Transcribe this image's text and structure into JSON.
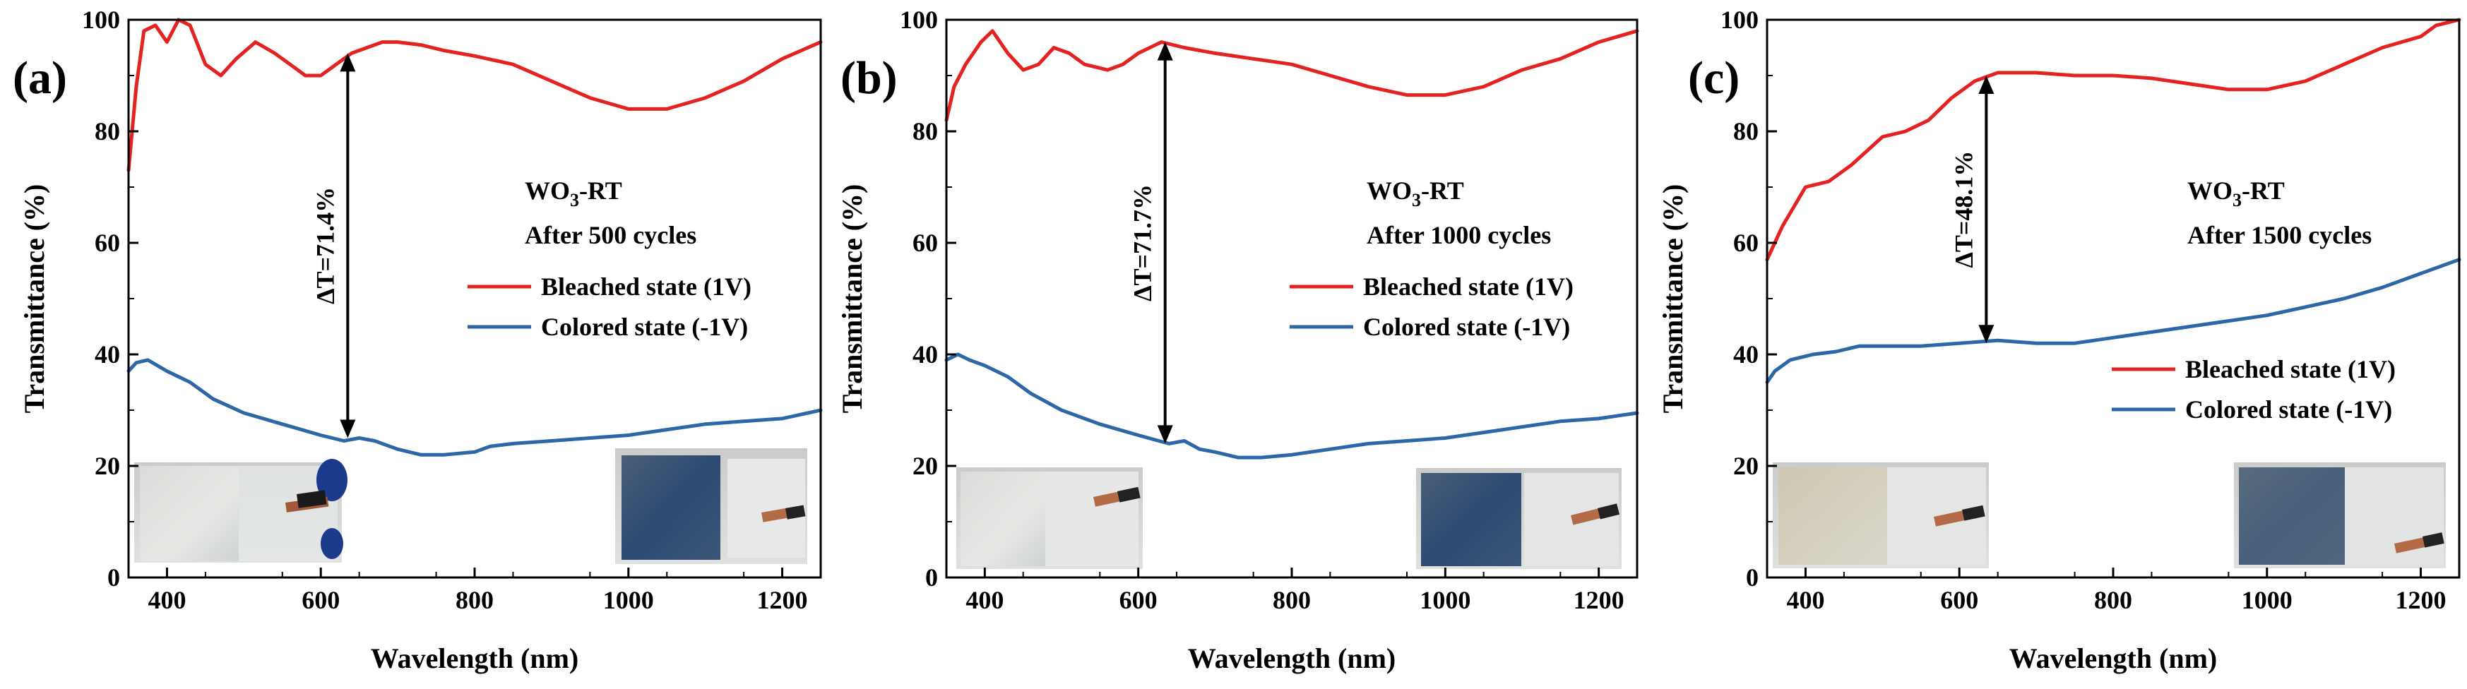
{
  "colors": {
    "bleached": "#e32222",
    "colored": "#2e67a6",
    "arrow": "#000000",
    "axis": "#000000"
  },
  "chart_data": [
    {
      "type": "line",
      "panel_label": "(a)",
      "xlabel": "Wavelength (nm)",
      "ylabel": "Transmittance (%)",
      "xlim": [
        350,
        1250
      ],
      "ylim": [
        0,
        100
      ],
      "xticks": [
        400,
        600,
        800,
        1000,
        1200
      ],
      "yticks": [
        0,
        20,
        40,
        60,
        80,
        100
      ],
      "grid": false,
      "legend_position": "middle-right",
      "annotation": {
        "label": "ΔT=71.4%",
        "x": 635,
        "y_top": 94,
        "y_bottom": 25
      },
      "sample_text": {
        "material": "WO",
        "subscript": "3",
        "suffix": "-RT",
        "cycles": "After 500 cycles"
      },
      "series": [
        {
          "name": "Bleached state (1V)",
          "color_key": "bleached",
          "x": [
            350,
            360,
            370,
            385,
            400,
            415,
            430,
            450,
            470,
            490,
            515,
            540,
            560,
            580,
            600,
            620,
            640,
            660,
            680,
            700,
            730,
            760,
            800,
            850,
            900,
            950,
            1000,
            1050,
            1100,
            1150,
            1200,
            1250
          ],
          "y": [
            73,
            88,
            98,
            99,
            96,
            100,
            99,
            92,
            90,
            93,
            96,
            94,
            92,
            90,
            90,
            92,
            94,
            95,
            96,
            96,
            95.5,
            94.5,
            93.5,
            92,
            89,
            86,
            84,
            84,
            86,
            89,
            93,
            96
          ]
        },
        {
          "name": "Colored state (-1V)",
          "color_key": "colored",
          "x": [
            350,
            360,
            375,
            400,
            430,
            460,
            500,
            550,
            600,
            630,
            650,
            670,
            700,
            730,
            760,
            800,
            820,
            850,
            900,
            950,
            1000,
            1050,
            1100,
            1150,
            1200,
            1250
          ],
          "y": [
            37,
            38.5,
            39,
            37,
            35,
            32,
            29.5,
            27.5,
            25.5,
            24.5,
            25,
            24.5,
            23,
            22,
            22,
            22.5,
            23.5,
            24,
            24.5,
            25,
            25.5,
            26.5,
            27.5,
            28,
            28.5,
            30
          ]
        }
      ]
    },
    {
      "type": "line",
      "panel_label": "(b)",
      "xlabel": "Wavelength (nm)",
      "ylabel": "Transmittance (%)",
      "xlim": [
        350,
        1250
      ],
      "ylim": [
        0,
        100
      ],
      "xticks": [
        400,
        600,
        800,
        1000,
        1200
      ],
      "yticks": [
        0,
        20,
        40,
        60,
        80,
        100
      ],
      "grid": false,
      "legend_position": "middle-right",
      "annotation": {
        "label": "ΔT=71.7%",
        "x": 635,
        "y_top": 96,
        "y_bottom": 24
      },
      "sample_text": {
        "material": "WO",
        "subscript": "3",
        "suffix": "-RT",
        "cycles": "After 1000 cycles"
      },
      "series": [
        {
          "name": "Bleached state (1V)",
          "color_key": "bleached",
          "x": [
            350,
            360,
            375,
            395,
            410,
            430,
            450,
            470,
            490,
            510,
            530,
            560,
            580,
            600,
            630,
            660,
            700,
            750,
            800,
            850,
            900,
            950,
            1000,
            1050,
            1100,
            1150,
            1200,
            1250
          ],
          "y": [
            82,
            88,
            92,
            96,
            98,
            94,
            91,
            92,
            95,
            94,
            92,
            91,
            92,
            94,
            96,
            95,
            94,
            93,
            92,
            90,
            88,
            86.5,
            86.5,
            88,
            91,
            93,
            96,
            98
          ]
        },
        {
          "name": "Colored state (-1V)",
          "color_key": "colored",
          "x": [
            350,
            365,
            380,
            400,
            430,
            460,
            500,
            550,
            600,
            640,
            660,
            680,
            700,
            730,
            760,
            800,
            850,
            900,
            950,
            1000,
            1050,
            1100,
            1150,
            1200,
            1250
          ],
          "y": [
            39,
            40,
            39,
            38,
            36,
            33,
            30,
            27.5,
            25.5,
            24,
            24.5,
            23,
            22.5,
            21.5,
            21.5,
            22,
            23,
            24,
            24.5,
            25,
            26,
            27,
            28,
            28.5,
            29.5
          ]
        }
      ]
    },
    {
      "type": "line",
      "panel_label": "(c)",
      "xlabel": "Wavelength (nm)",
      "ylabel": "Transmittance (%)",
      "xlim": [
        350,
        1250
      ],
      "ylim": [
        0,
        100
      ],
      "xticks": [
        400,
        600,
        800,
        1000,
        1200
      ],
      "yticks": [
        0,
        20,
        40,
        60,
        80,
        100
      ],
      "grid": false,
      "legend_position": "middle-right",
      "annotation": {
        "label": "ΔT=48.1%",
        "x": 635,
        "y_top": 90,
        "y_bottom": 42
      },
      "sample_text": {
        "material": "WO",
        "subscript": "3",
        "suffix": "-RT",
        "cycles": "After 1500 cycles"
      },
      "series": [
        {
          "name": "Bleached state (1V)",
          "color_key": "bleached",
          "x": [
            350,
            370,
            400,
            430,
            460,
            500,
            530,
            560,
            590,
            620,
            650,
            700,
            750,
            800,
            850,
            900,
            950,
            1000,
            1050,
            1100,
            1150,
            1200,
            1220,
            1250
          ],
          "y": [
            57,
            63,
            70,
            71,
            74,
            79,
            80,
            82,
            86,
            89,
            90.5,
            90.5,
            90,
            90,
            89.5,
            88.5,
            87.5,
            87.5,
            89,
            92,
            95,
            97,
            99,
            100
          ]
        },
        {
          "name": "Colored state (-1V)",
          "color_key": "colored",
          "x": [
            350,
            360,
            380,
            410,
            440,
            470,
            500,
            550,
            600,
            650,
            700,
            750,
            800,
            850,
            900,
            950,
            1000,
            1050,
            1100,
            1150,
            1200,
            1250
          ],
          "y": [
            35,
            37,
            39,
            40,
            40.5,
            41.5,
            41.5,
            41.5,
            42,
            42.5,
            42,
            42,
            43,
            44,
            45,
            46,
            47,
            48.5,
            50,
            52,
            54.5,
            57
          ]
        }
      ]
    }
  ]
}
